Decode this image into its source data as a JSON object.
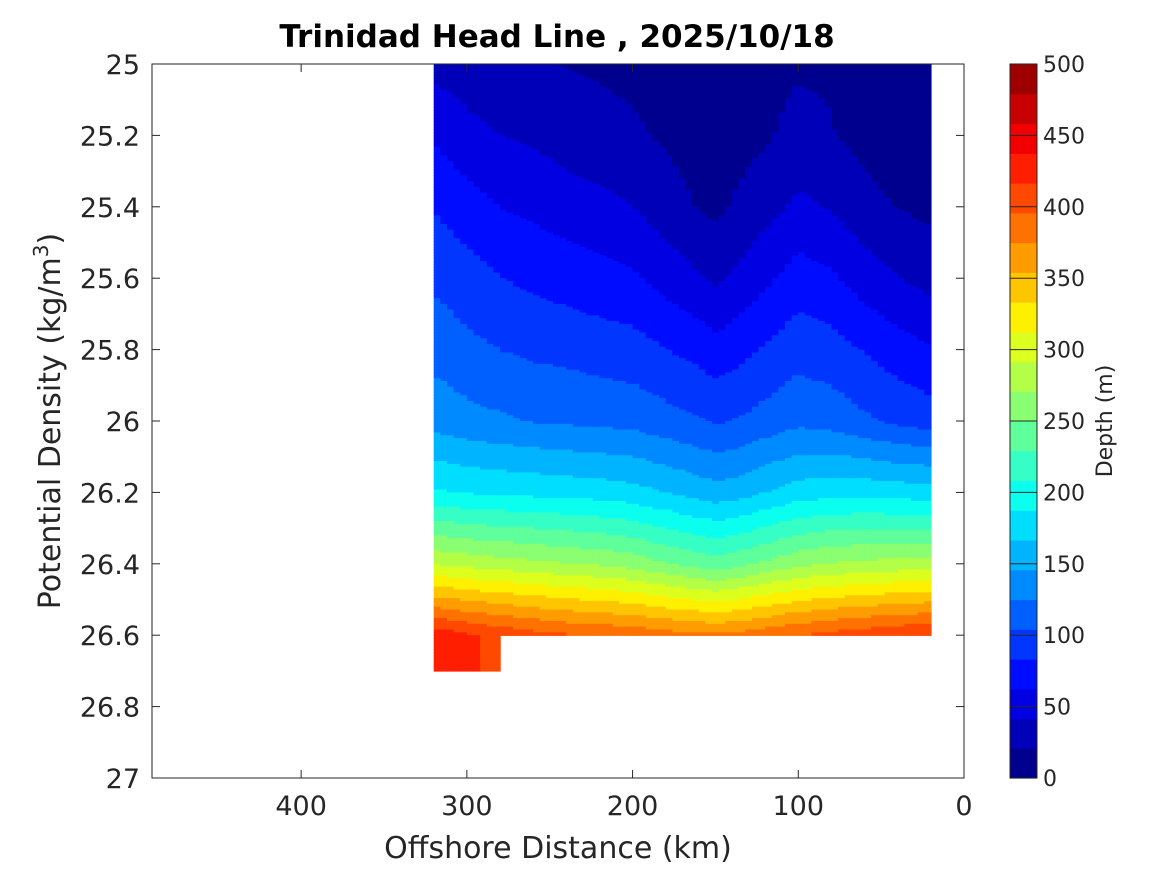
{
  "chart_data": {
    "type": "contour",
    "title": "Trinidad Head Line , 2025/10/18",
    "xlabel": "Offshore Distance (km)",
    "ylabel": "Potential Density (kg/m",
    "ylabel_sup": "3",
    "ylabel_close": ")",
    "xlim": [
      490,
      0
    ],
    "ylim": [
      25,
      27
    ],
    "x_reversed": true,
    "y_reversed": true,
    "x_ticks": [
      400,
      300,
      200,
      100,
      0
    ],
    "y_ticks": [
      25,
      25.2,
      25.4,
      25.6,
      25.8,
      26,
      26.2,
      26.4,
      26.6,
      26.8,
      27
    ],
    "y_tick_labels": [
      "25",
      "25.2",
      "25.4",
      "25.6",
      "25.8",
      "26",
      "26.2",
      "26.4",
      "26.6",
      "26.8",
      "27"
    ],
    "grid": false,
    "colorbar": {
      "label": "Depth (m)",
      "range": [
        0,
        500
      ],
      "tick_values": [
        0,
        50,
        100,
        150,
        200,
        250,
        300,
        350,
        400,
        450,
        500
      ],
      "tick_labels": [
        "0",
        "50",
        "100",
        "150",
        "200",
        "250",
        "300",
        "350",
        "400",
        "450",
        "500"
      ],
      "colors": [
        "#00008f",
        "#0000b9",
        "#0000e3",
        "#000cff",
        "#0036ff",
        "#0060ff",
        "#008aff",
        "#00b4ff",
        "#00deff",
        "#0bffef",
        "#35ffc5",
        "#5fff9b",
        "#89ff71",
        "#b3ff47",
        "#ddff1d",
        "#fff000",
        "#ffc600",
        "#ff9c00",
        "#ff7200",
        "#ff4800",
        "#ff1e00",
        "#f20000",
        "#c70000",
        "#9e0000"
      ]
    },
    "x": [
      320,
      300,
      280,
      260,
      240,
      220,
      200,
      180,
      160,
      150,
      140,
      120,
      100,
      80,
      60,
      40,
      20
    ],
    "isopycnals_depth_m": [
      {
        "density": 25.0,
        "depth": [
          35,
          31,
          26,
          24,
          20,
          18,
          16,
          14,
          12,
          10,
          12,
          15,
          18,
          18,
          12,
          8,
          6
        ]
      },
      {
        "density": 25.2,
        "depth": [
          60,
          48,
          42,
          38,
          32,
          28,
          24,
          18,
          12,
          10,
          12,
          18,
          28,
          22,
          14,
          8,
          6
        ]
      },
      {
        "density": 25.4,
        "depth": [
          82,
          72,
          62,
          58,
          52,
          48,
          42,
          30,
          20,
          16,
          22,
          34,
          46,
          40,
          28,
          20,
          16
        ]
      },
      {
        "density": 25.6,
        "depth": [
          100,
          92,
          84,
          78,
          74,
          70,
          66,
          54,
          44,
          38,
          44,
          58,
          72,
          66,
          52,
          42,
          34
        ]
      },
      {
        "density": 25.8,
        "depth": [
          118,
          110,
          104,
          100,
          98,
          94,
          92,
          84,
          76,
          70,
          74,
          86,
          96,
          92,
          82,
          72,
          64
        ]
      },
      {
        "density": 26.0,
        "depth": [
          138,
          132,
          128,
          124,
          122,
          120,
          118,
          112,
          106,
          102,
          104,
          112,
          120,
          116,
          108,
          100,
          94
        ]
      },
      {
        "density": 26.2,
        "depth": [
          190,
          186,
          184,
          182,
          180,
          178,
          174,
          166,
          158,
          154,
          156,
          166,
          176,
          180,
          180,
          178,
          176
        ]
      },
      {
        "density": 26.4,
        "depth": [
          290,
          284,
          280,
          276,
          272,
          268,
          262,
          252,
          242,
          238,
          242,
          254,
          266,
          272,
          276,
          278,
          280
        ]
      },
      {
        "density": 26.6,
        "depth": [
          430,
          420,
          412,
          404,
          398,
          394,
          390,
          384,
          380,
          378,
          380,
          388,
          396,
          402,
          408,
          414,
          418
        ]
      }
    ]
  }
}
